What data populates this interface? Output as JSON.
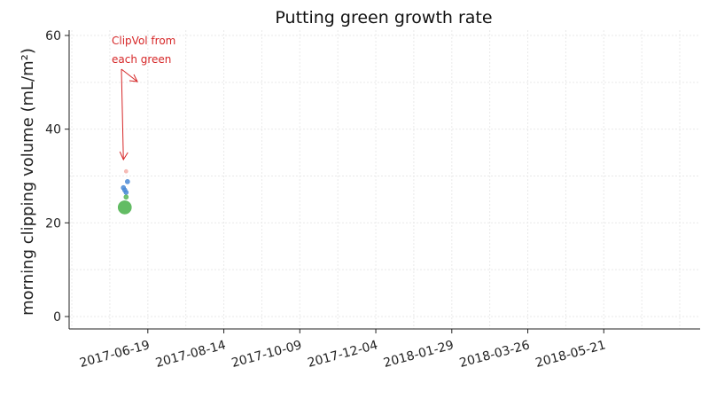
{
  "chart_data": {
    "type": "scatter",
    "title": "Putting green growth rate",
    "xlabel": "",
    "ylabel": "morning clipping volume (mL/m²)",
    "ylim": [
      0,
      60
    ],
    "xlim": [
      "2017-04-22",
      "2018-07-31"
    ],
    "x_ticks": [
      "2017-06-19",
      "2017-08-14",
      "2017-10-09",
      "2017-12-04",
      "2018-01-29",
      "2018-03-26",
      "2018-05-21"
    ],
    "y_ticks": [
      0,
      20,
      40,
      60
    ],
    "grid": true,
    "annotation": {
      "text_lines": [
        "ClipVol from",
        "each green"
      ],
      "arrow_to": {
        "x": "2017-06-01",
        "y": 33.5
      },
      "color": "#d62728"
    },
    "series": [
      {
        "color": "#4c8bd6",
        "points": [
          {
            "x": "2017-06-01",
            "y": 27.5,
            "r": 2.5
          },
          {
            "x": "2017-06-02",
            "y": 27.0,
            "r": 2.5
          },
          {
            "x": "2017-06-03",
            "y": 26.5,
            "r": 2.5
          },
          {
            "x": "2017-06-04",
            "y": 28.8,
            "r": 2.5
          }
        ]
      },
      {
        "color": "#5bb85c",
        "points": [
          {
            "x": "2017-06-02",
            "y": 23.3,
            "r": 7.5
          },
          {
            "x": "2017-06-03",
            "y": 25.5,
            "r": 2.5
          }
        ]
      },
      {
        "color": "#f4b0aa",
        "points": [
          {
            "x": "2017-06-03",
            "y": 31.0,
            "r": 2
          }
        ]
      }
    ]
  }
}
